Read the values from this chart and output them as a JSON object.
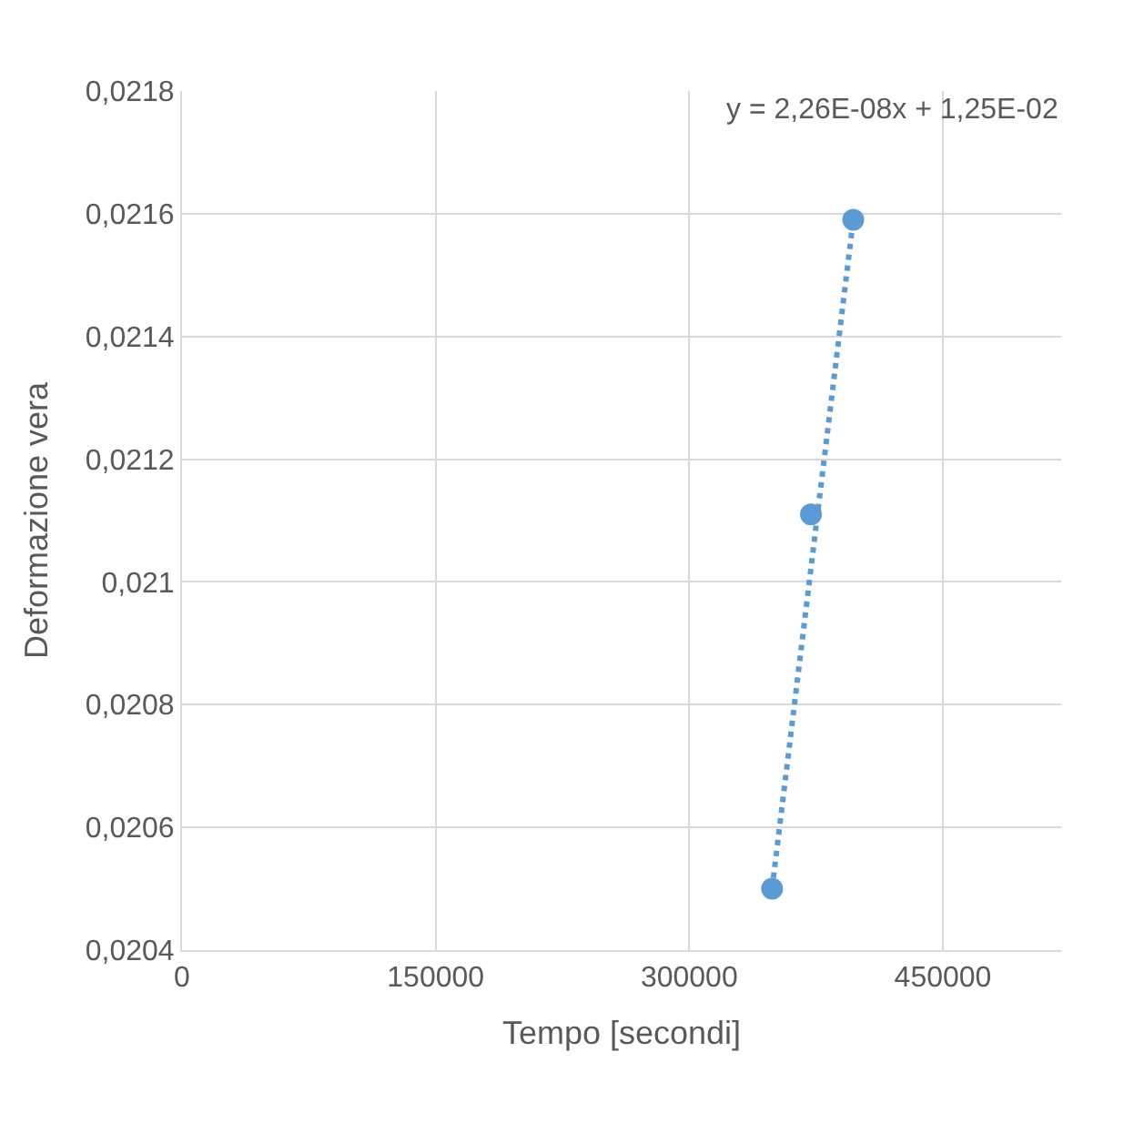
{
  "chart_data": {
    "type": "scatter",
    "xlabel": "Tempo [secondi]",
    "ylabel": "Deformazione vera",
    "series": [
      {
        "color": "#5b9bd5",
        "x": [
          349000,
          372000,
          397000
        ],
        "values": [
          0.0205,
          0.02111,
          0.02159
        ],
        "marker": "circle"
      },
      {
        "type": "line",
        "color": "#5b9bd5",
        "x": [
          349000,
          397000
        ],
        "values": [
          0.0205,
          0.02159
        ],
        "line_style": "dotted",
        "marker": "none"
      }
    ],
    "annotations": [
      "y = 2,26E-08x + 1,25E-02"
    ],
    "xlim": [
      0,
      520000
    ],
    "xticks": [
      0,
      150000,
      300000,
      450000
    ],
    "ylim": [
      0.0204,
      0.0218
    ],
    "yticks": [
      {
        "value": 0.0204,
        "label": "0,0204"
      },
      {
        "value": 0.0206,
        "label": "0,0206"
      },
      {
        "value": 0.0208,
        "label": "0,0208"
      },
      {
        "value": 0.021,
        "label": "0,021"
      },
      {
        "value": 0.0212,
        "label": "0,0212"
      },
      {
        "value": 0.0214,
        "label": "0,0214"
      },
      {
        "value": 0.0216,
        "label": "0,0216"
      },
      {
        "value": 0.0218,
        "label": "0,0218"
      }
    ],
    "grid": true
  }
}
